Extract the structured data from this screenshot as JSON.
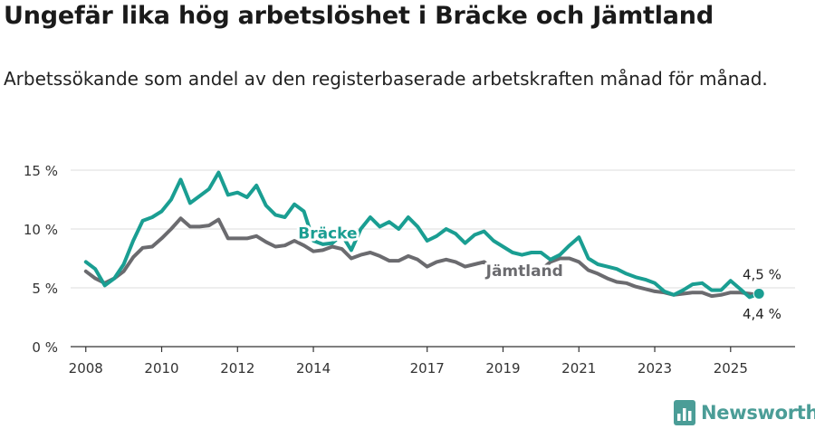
{
  "title": "Ungefär lika hög arbetslöshet i Bräcke och Jämtland",
  "subtitle": "Arbetssökande som andel av den registerbaserade arbetskraften månad för månad.",
  "brand": {
    "name": "Newsworthy",
    "color": "#4b9d97"
  },
  "chart_data": {
    "type": "line",
    "title": "Ungefär lika hög arbetslöshet i Bräcke och Jämtland",
    "xlabel": "",
    "ylabel": "",
    "xlim": [
      2007.6,
      2026.7
    ],
    "ylim": [
      0,
      15
    ],
    "yticks": [
      0,
      5,
      10,
      15
    ],
    "ytick_labels": [
      "0 %",
      "5 %",
      "10 %",
      "15 %"
    ],
    "xticks": [
      2008,
      2010,
      2012,
      2014,
      2017,
      2019,
      2021,
      2023,
      2025
    ],
    "xtick_labels": [
      "2008",
      "2010",
      "2012",
      "2014",
      "2017",
      "2019",
      "2021",
      "2023",
      "2025"
    ],
    "grid": true,
    "series": [
      {
        "name": "Bräcke",
        "color": "#1a9e92",
        "label_text": "Bräcke",
        "end_label": "4,5 %",
        "points": [
          [
            2008.0,
            7.2
          ],
          [
            2008.25,
            6.6
          ],
          [
            2008.5,
            5.2
          ],
          [
            2008.75,
            5.8
          ],
          [
            2009.0,
            7.0
          ],
          [
            2009.25,
            9.0
          ],
          [
            2009.5,
            10.7
          ],
          [
            2009.75,
            11.0
          ],
          [
            2010.0,
            11.5
          ],
          [
            2010.25,
            12.5
          ],
          [
            2010.5,
            14.2
          ],
          [
            2010.75,
            12.2
          ],
          [
            2011.0,
            12.8
          ],
          [
            2011.25,
            13.4
          ],
          [
            2011.5,
            14.8
          ],
          [
            2011.75,
            12.9
          ],
          [
            2012.0,
            13.1
          ],
          [
            2012.25,
            12.7
          ],
          [
            2012.5,
            13.7
          ],
          [
            2012.75,
            12.0
          ],
          [
            2013.0,
            11.2
          ],
          [
            2013.25,
            11.0
          ],
          [
            2013.5,
            12.1
          ],
          [
            2013.75,
            11.5
          ],
          [
            2014.0,
            9.0
          ],
          [
            2014.25,
            8.7
          ],
          [
            2014.5,
            8.8
          ],
          [
            2014.75,
            9.5
          ],
          [
            2015.0,
            8.2
          ],
          [
            2015.25,
            10.0
          ],
          [
            2015.5,
            11.0
          ],
          [
            2015.75,
            10.2
          ],
          [
            2016.0,
            10.6
          ],
          [
            2016.25,
            10.0
          ],
          [
            2016.5,
            11.0
          ],
          [
            2016.75,
            10.2
          ],
          [
            2017.0,
            9.0
          ],
          [
            2017.25,
            9.4
          ],
          [
            2017.5,
            10.0
          ],
          [
            2017.75,
            9.6
          ],
          [
            2018.0,
            8.8
          ],
          [
            2018.25,
            9.5
          ],
          [
            2018.5,
            9.8
          ],
          [
            2018.75,
            9.0
          ],
          [
            2019.0,
            8.5
          ],
          [
            2019.25,
            8.0
          ],
          [
            2019.5,
            7.8
          ],
          [
            2019.75,
            8.0
          ],
          [
            2020.0,
            8.0
          ],
          [
            2020.25,
            7.4
          ],
          [
            2020.5,
            7.8
          ],
          [
            2020.75,
            8.6
          ],
          [
            2021.0,
            9.3
          ],
          [
            2021.25,
            7.5
          ],
          [
            2021.5,
            7.0
          ],
          [
            2021.75,
            6.8
          ],
          [
            2022.0,
            6.6
          ],
          [
            2022.25,
            6.2
          ],
          [
            2022.5,
            5.9
          ],
          [
            2022.75,
            5.7
          ],
          [
            2023.0,
            5.4
          ],
          [
            2023.25,
            4.7
          ],
          [
            2023.5,
            4.4
          ],
          [
            2023.75,
            4.8
          ],
          [
            2024.0,
            5.3
          ],
          [
            2024.25,
            5.4
          ],
          [
            2024.5,
            4.8
          ],
          [
            2024.75,
            4.8
          ],
          [
            2025.0,
            5.6
          ],
          [
            2025.25,
            4.9
          ],
          [
            2025.5,
            4.2
          ],
          [
            2025.75,
            4.5
          ]
        ]
      },
      {
        "name": "Jämtland",
        "color": "#6b6b6f",
        "label_text": "Jämtland",
        "end_label": "4,4 %",
        "points": [
          [
            2008.0,
            6.4
          ],
          [
            2008.25,
            5.8
          ],
          [
            2008.5,
            5.4
          ],
          [
            2008.75,
            5.8
          ],
          [
            2009.0,
            6.4
          ],
          [
            2009.25,
            7.6
          ],
          [
            2009.5,
            8.4
          ],
          [
            2009.75,
            8.5
          ],
          [
            2010.0,
            9.2
          ],
          [
            2010.25,
            10.0
          ],
          [
            2010.5,
            10.9
          ],
          [
            2010.75,
            10.2
          ],
          [
            2011.0,
            10.2
          ],
          [
            2011.25,
            10.3
          ],
          [
            2011.5,
            10.8
          ],
          [
            2011.75,
            9.2
          ],
          [
            2012.0,
            9.2
          ],
          [
            2012.25,
            9.2
          ],
          [
            2012.5,
            9.4
          ],
          [
            2012.75,
            8.9
          ],
          [
            2013.0,
            8.5
          ],
          [
            2013.25,
            8.6
          ],
          [
            2013.5,
            9.0
          ],
          [
            2013.75,
            8.6
          ],
          [
            2014.0,
            8.1
          ],
          [
            2014.25,
            8.2
          ],
          [
            2014.5,
            8.5
          ],
          [
            2014.75,
            8.3
          ],
          [
            2015.0,
            7.5
          ],
          [
            2015.25,
            7.8
          ],
          [
            2015.5,
            8.0
          ],
          [
            2015.75,
            7.7
          ],
          [
            2016.0,
            7.3
          ],
          [
            2016.25,
            7.3
          ],
          [
            2016.5,
            7.7
          ],
          [
            2016.75,
            7.4
          ],
          [
            2017.0,
            6.8
          ],
          [
            2017.25,
            7.2
          ],
          [
            2017.5,
            7.4
          ],
          [
            2017.75,
            7.2
          ],
          [
            2018.0,
            6.8
          ],
          [
            2018.25,
            7.0
          ],
          [
            2018.5,
            7.2
          ],
          [
            2018.75,
            6.6
          ],
          [
            2019.0,
            6.3
          ],
          [
            2019.25,
            6.4
          ],
          [
            2019.5,
            6.5
          ],
          [
            2019.75,
            6.5
          ],
          [
            2020.0,
            6.5
          ],
          [
            2020.25,
            7.2
          ],
          [
            2020.5,
            7.5
          ],
          [
            2020.75,
            7.5
          ],
          [
            2021.0,
            7.2
          ],
          [
            2021.25,
            6.5
          ],
          [
            2021.5,
            6.2
          ],
          [
            2021.75,
            5.8
          ],
          [
            2022.0,
            5.5
          ],
          [
            2022.25,
            5.4
          ],
          [
            2022.5,
            5.1
          ],
          [
            2022.75,
            4.9
          ],
          [
            2023.0,
            4.7
          ],
          [
            2023.25,
            4.6
          ],
          [
            2023.5,
            4.4
          ],
          [
            2023.75,
            4.5
          ],
          [
            2024.0,
            4.6
          ],
          [
            2024.25,
            4.6
          ],
          [
            2024.5,
            4.3
          ],
          [
            2024.75,
            4.4
          ],
          [
            2025.0,
            4.6
          ],
          [
            2025.25,
            4.6
          ],
          [
            2025.5,
            4.5
          ],
          [
            2025.75,
            4.4
          ]
        ]
      }
    ]
  }
}
